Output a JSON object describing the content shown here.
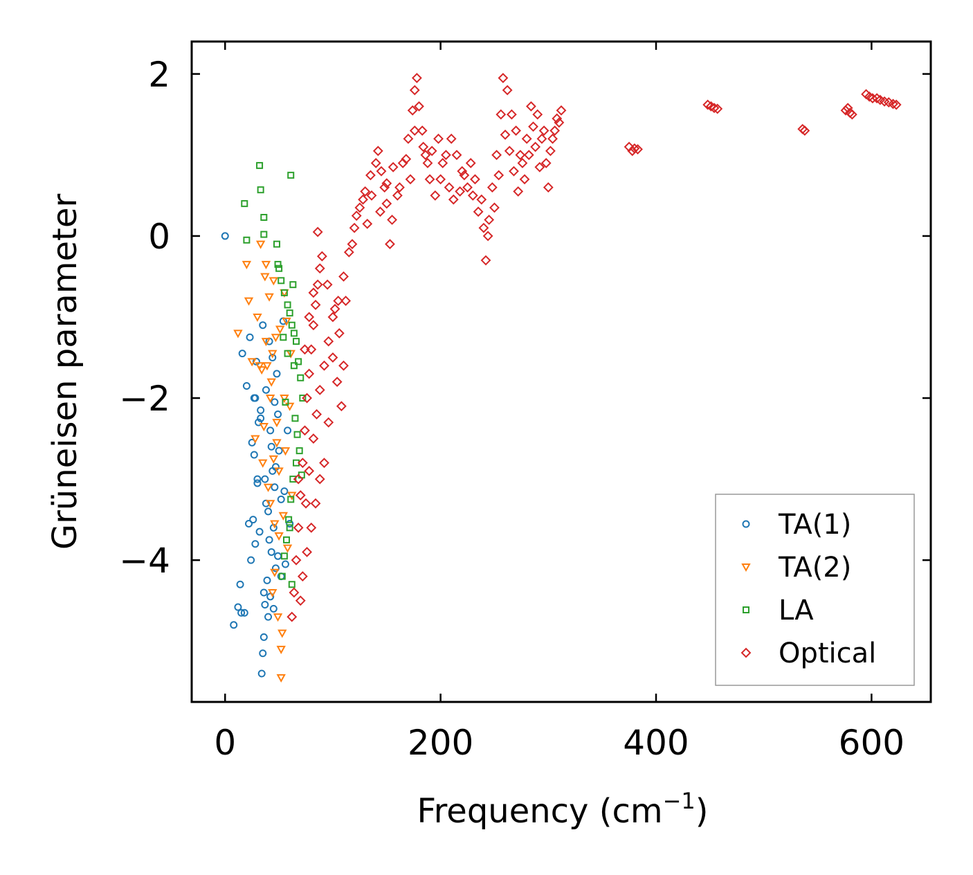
{
  "chart_data": {
    "type": "scatter",
    "title": "",
    "xlabel": "Frequency (cm",
    "xlabel_sup": "−1",
    "xlabel_end": ")",
    "ylabel": "Grüneisen parameter",
    "xlim": [
      -31,
      655
    ],
    "ylim": [
      -5.75,
      2.4
    ],
    "x_ticks": [
      0,
      200,
      400,
      600
    ],
    "x_tick_labels": [
      "0",
      "200",
      "400",
      "600"
    ],
    "y_ticks": [
      2,
      0,
      -2,
      -4
    ],
    "y_tick_labels": [
      "2",
      "0",
      "−2",
      "−4"
    ],
    "grid": false,
    "legend_position": "lower-right",
    "series": [
      {
        "name": "TA(1)",
        "marker": "circle",
        "color": "#1f77b4",
        "points": [
          [
            0,
            0
          ],
          [
            8,
            -4.8
          ],
          [
            12,
            -4.58
          ],
          [
            14,
            -4.3
          ],
          [
            15,
            -4.65
          ],
          [
            18,
            -4.65
          ],
          [
            16,
            -1.45
          ],
          [
            20,
            -1.85
          ],
          [
            22,
            -3.55
          ],
          [
            24,
            -4
          ],
          [
            23,
            -1.25
          ],
          [
            25,
            -2.55
          ],
          [
            26,
            -3.5
          ],
          [
            27,
            -2.7
          ],
          [
            28,
            -3.8
          ],
          [
            28,
            -2
          ],
          [
            29,
            -1.55
          ],
          [
            30,
            -3.05
          ],
          [
            31,
            -2.3
          ],
          [
            32,
            -3.65
          ],
          [
            33,
            -2.15
          ],
          [
            34,
            -5.4
          ],
          [
            35,
            -5.15
          ],
          [
            36,
            -4.95
          ],
          [
            37,
            -4.55
          ],
          [
            38,
            -3.3
          ],
          [
            40,
            -4.7
          ],
          [
            41,
            -1.3
          ],
          [
            42,
            -2.4
          ],
          [
            43,
            -3.9
          ],
          [
            44,
            -2.9
          ],
          [
            45,
            -3.6
          ],
          [
            46,
            -2.05
          ],
          [
            47,
            -4.1
          ],
          [
            48,
            -1.7
          ],
          [
            49,
            -3.95
          ],
          [
            50,
            -2.65
          ],
          [
            52,
            -4.2
          ],
          [
            54,
            -1.05
          ],
          [
            55,
            -3.15
          ],
          [
            56,
            -4.05
          ],
          [
            58,
            -2.4
          ],
          [
            60,
            -3.55
          ],
          [
            39,
            -4.25
          ],
          [
            41,
            -3.75
          ],
          [
            43,
            -2.6
          ],
          [
            35,
            -1.1
          ],
          [
            37,
            -3.0
          ],
          [
            33,
            -2.25
          ],
          [
            30,
            -3.0
          ],
          [
            27,
            -2.0
          ],
          [
            44,
            -1.5
          ],
          [
            46,
            -3.1
          ],
          [
            49,
            -2.2
          ],
          [
            52,
            -3.25
          ],
          [
            38,
            -1.9
          ],
          [
            36,
            -4.4
          ],
          [
            42,
            -4.45
          ],
          [
            40,
            -3.4
          ],
          [
            45,
            -4.6
          ],
          [
            47,
            -2.85
          ]
        ]
      },
      {
        "name": "TA(2)",
        "marker": "triangle-down",
        "color": "#ff7f0e",
        "points": [
          [
            12,
            -1.2
          ],
          [
            20,
            -0.35
          ],
          [
            22,
            -0.8
          ],
          [
            25,
            -1.55
          ],
          [
            28,
            -2.5
          ],
          [
            30,
            -1.0
          ],
          [
            32,
            -1.6
          ],
          [
            33,
            -0.1
          ],
          [
            35,
            -2.8
          ],
          [
            37,
            -0.5
          ],
          [
            38,
            -1.3
          ],
          [
            40,
            -3.1
          ],
          [
            41,
            -0.75
          ],
          [
            42,
            -2.0
          ],
          [
            43,
            -1.8
          ],
          [
            44,
            -4.4
          ],
          [
            45,
            -0.55
          ],
          [
            46,
            -3.55
          ],
          [
            47,
            -1.25
          ],
          [
            48,
            -2.3
          ],
          [
            49,
            -4.7
          ],
          [
            50,
            -2.9
          ],
          [
            51,
            -1.15
          ],
          [
            52,
            -5.45
          ],
          [
            53,
            -4.9
          ],
          [
            54,
            -3.45
          ],
          [
            55,
            -0.7
          ],
          [
            56,
            -2.65
          ],
          [
            57,
            -1.05
          ],
          [
            58,
            -3.85
          ],
          [
            60,
            -2.1
          ],
          [
            61,
            -1.45
          ],
          [
            62,
            -3.2
          ],
          [
            52,
            -5.1
          ],
          [
            39,
            -1.6
          ],
          [
            44,
            -1.45
          ],
          [
            48,
            -2.55
          ],
          [
            36,
            -2.35
          ],
          [
            34,
            -1.65
          ],
          [
            50,
            -3.7
          ],
          [
            46,
            -4.15
          ],
          [
            55,
            -2.0
          ],
          [
            42,
            -3.3
          ],
          [
            38,
            -0.35
          ],
          [
            45,
            -2.75
          ]
        ]
      },
      {
        "name": "LA",
        "marker": "square",
        "color": "#2ca02c",
        "points": [
          [
            32,
            0.87
          ],
          [
            33,
            0.57
          ],
          [
            18,
            0.4
          ],
          [
            20,
            -0.05
          ],
          [
            36,
            0.23
          ],
          [
            36,
            0.02
          ],
          [
            61,
            0.75
          ],
          [
            48,
            -0.1
          ],
          [
            50,
            -0.4
          ],
          [
            52,
            -0.55
          ],
          [
            55,
            -0.7
          ],
          [
            58,
            -0.85
          ],
          [
            60,
            -0.95
          ],
          [
            62,
            -1.1
          ],
          [
            64,
            -1.2
          ],
          [
            66,
            -1.3
          ],
          [
            68,
            -1.55
          ],
          [
            70,
            -1.75
          ],
          [
            72,
            -2.0
          ],
          [
            65,
            -2.25
          ],
          [
            67,
            -2.45
          ],
          [
            69,
            -2.65
          ],
          [
            71,
            -2.95
          ],
          [
            63,
            -3.0
          ],
          [
            61,
            -3.25
          ],
          [
            59,
            -3.5
          ],
          [
            57,
            -3.75
          ],
          [
            55,
            -3.95
          ],
          [
            53,
            -4.2
          ],
          [
            62,
            -4.3
          ],
          [
            66,
            -2.8
          ],
          [
            64,
            -1.6
          ],
          [
            58,
            -1.45
          ],
          [
            54,
            -1.25
          ],
          [
            56,
            -2.05
          ],
          [
            60,
            -3.6
          ],
          [
            63,
            -0.6
          ],
          [
            49,
            -0.35
          ]
        ]
      },
      {
        "name": "Optical",
        "marker": "diamond",
        "color": "#d62728",
        "points": [
          [
            62,
            -4.7
          ],
          [
            64,
            -4.4
          ],
          [
            66,
            -4.0
          ],
          [
            68,
            -3.6
          ],
          [
            70,
            -3.2
          ],
          [
            72,
            -2.8
          ],
          [
            74,
            -2.4
          ],
          [
            76,
            -2.0
          ],
          [
            78,
            -1.7
          ],
          [
            80,
            -1.4
          ],
          [
            82,
            -1.1
          ],
          [
            84,
            -0.85
          ],
          [
            86,
            -0.6
          ],
          [
            88,
            -0.4
          ],
          [
            86,
            0.05
          ],
          [
            90,
            -0.25
          ],
          [
            95,
            -0.6
          ],
          [
            100,
            -1.0
          ],
          [
            105,
            -0.8
          ],
          [
            110,
            -0.5
          ],
          [
            115,
            -0.2
          ],
          [
            120,
            0.1
          ],
          [
            125,
            0.35
          ],
          [
            130,
            0.55
          ],
          [
            135,
            0.75
          ],
          [
            140,
            0.9
          ],
          [
            142,
            1.05
          ],
          [
            145,
            0.8
          ],
          [
            148,
            0.6
          ],
          [
            150,
            0.4
          ],
          [
            153,
            -0.1
          ],
          [
            155,
            0.2
          ],
          [
            160,
            0.5
          ],
          [
            165,
            0.9
          ],
          [
            170,
            1.2
          ],
          [
            174,
            1.55
          ],
          [
            176,
            1.8
          ],
          [
            178,
            1.95
          ],
          [
            180,
            1.6
          ],
          [
            183,
            1.3
          ],
          [
            186,
            1.0
          ],
          [
            190,
            0.7
          ],
          [
            195,
            0.5
          ],
          [
            200,
            0.7
          ],
          [
            205,
            1.0
          ],
          [
            210,
            1.2
          ],
          [
            215,
            1.0
          ],
          [
            220,
            0.8
          ],
          [
            225,
            0.6
          ],
          [
            230,
            0.5
          ],
          [
            235,
            0.3
          ],
          [
            240,
            0.1
          ],
          [
            242,
            -0.3
          ],
          [
            245,
            0.2
          ],
          [
            248,
            0.6
          ],
          [
            252,
            1.0
          ],
          [
            256,
            1.5
          ],
          [
            258,
            1.95
          ],
          [
            262,
            1.8
          ],
          [
            266,
            1.5
          ],
          [
            270,
            1.3
          ],
          [
            274,
            1.0
          ],
          [
            278,
            0.7
          ],
          [
            282,
            1.0
          ],
          [
            286,
            1.35
          ],
          [
            290,
            1.5
          ],
          [
            294,
            1.2
          ],
          [
            298,
            0.9
          ],
          [
            300,
            0.6
          ],
          [
            304,
            1.2
          ],
          [
            308,
            1.45
          ],
          [
            312,
            1.55
          ],
          [
            75,
            -3.3
          ],
          [
            78,
            -2.9
          ],
          [
            82,
            -2.5
          ],
          [
            85,
            -2.2
          ],
          [
            88,
            -1.9
          ],
          [
            92,
            -1.6
          ],
          [
            96,
            -1.3
          ],
          [
            100,
            -1.5
          ],
          [
            104,
            -1.8
          ],
          [
            108,
            -2.1
          ],
          [
            110,
            -1.6
          ],
          [
            106,
            -1.2
          ],
          [
            102,
            -0.9
          ],
          [
            112,
            -0.8
          ],
          [
            96,
            -2.3
          ],
          [
            92,
            -2.8
          ],
          [
            88,
            -3.0
          ],
          [
            84,
            -3.3
          ],
          [
            80,
            -3.6
          ],
          [
            76,
            -3.9
          ],
          [
            72,
            -4.2
          ],
          [
            70,
            -4.5
          ],
          [
            68,
            -3.0
          ],
          [
            74,
            -1.4
          ],
          [
            78,
            -1.0
          ],
          [
            82,
            -0.7
          ],
          [
            118,
            -0.1
          ],
          [
            122,
            0.25
          ],
          [
            128,
            0.45
          ],
          [
            132,
            0.15
          ],
          [
            136,
            0.5
          ],
          [
            144,
            0.3
          ],
          [
            150,
            0.65
          ],
          [
            156,
            0.85
          ],
          [
            162,
            0.6
          ],
          [
            168,
            0.95
          ],
          [
            172,
            0.7
          ],
          [
            176,
            1.3
          ],
          [
            184,
            1.1
          ],
          [
            188,
            0.9
          ],
          [
            192,
            1.05
          ],
          [
            198,
            1.2
          ],
          [
            202,
            0.9
          ],
          [
            208,
            0.6
          ],
          [
            212,
            0.45
          ],
          [
            218,
            0.55
          ],
          [
            222,
            0.75
          ],
          [
            228,
            0.9
          ],
          [
            232,
            0.7
          ],
          [
            238,
            0.45
          ],
          [
            244,
            0.0
          ],
          [
            250,
            0.35
          ],
          [
            254,
            0.75
          ],
          [
            260,
            1.25
          ],
          [
            264,
            1.05
          ],
          [
            268,
            0.8
          ],
          [
            272,
            0.55
          ],
          [
            276,
            0.9
          ],
          [
            280,
            1.2
          ],
          [
            284,
            1.6
          ],
          [
            288,
            1.1
          ],
          [
            292,
            0.85
          ],
          [
            296,
            1.3
          ],
          [
            302,
            1.05
          ],
          [
            306,
            1.3
          ],
          [
            310,
            1.4
          ],
          [
            375,
            1.1
          ],
          [
            378,
            1.05
          ],
          [
            380,
            1.08
          ],
          [
            383,
            1.07
          ],
          [
            448,
            1.62
          ],
          [
            451,
            1.6
          ],
          [
            454,
            1.58
          ],
          [
            457,
            1.57
          ],
          [
            536,
            1.32
          ],
          [
            538,
            1.3
          ],
          [
            576,
            1.55
          ],
          [
            578,
            1.58
          ],
          [
            580,
            1.52
          ],
          [
            582,
            1.5
          ],
          [
            595,
            1.75
          ],
          [
            598,
            1.72
          ],
          [
            601,
            1.7
          ],
          [
            605,
            1.7
          ],
          [
            608,
            1.68
          ],
          [
            612,
            1.66
          ],
          [
            616,
            1.65
          ],
          [
            620,
            1.63
          ],
          [
            623,
            1.62
          ]
        ]
      }
    ]
  }
}
